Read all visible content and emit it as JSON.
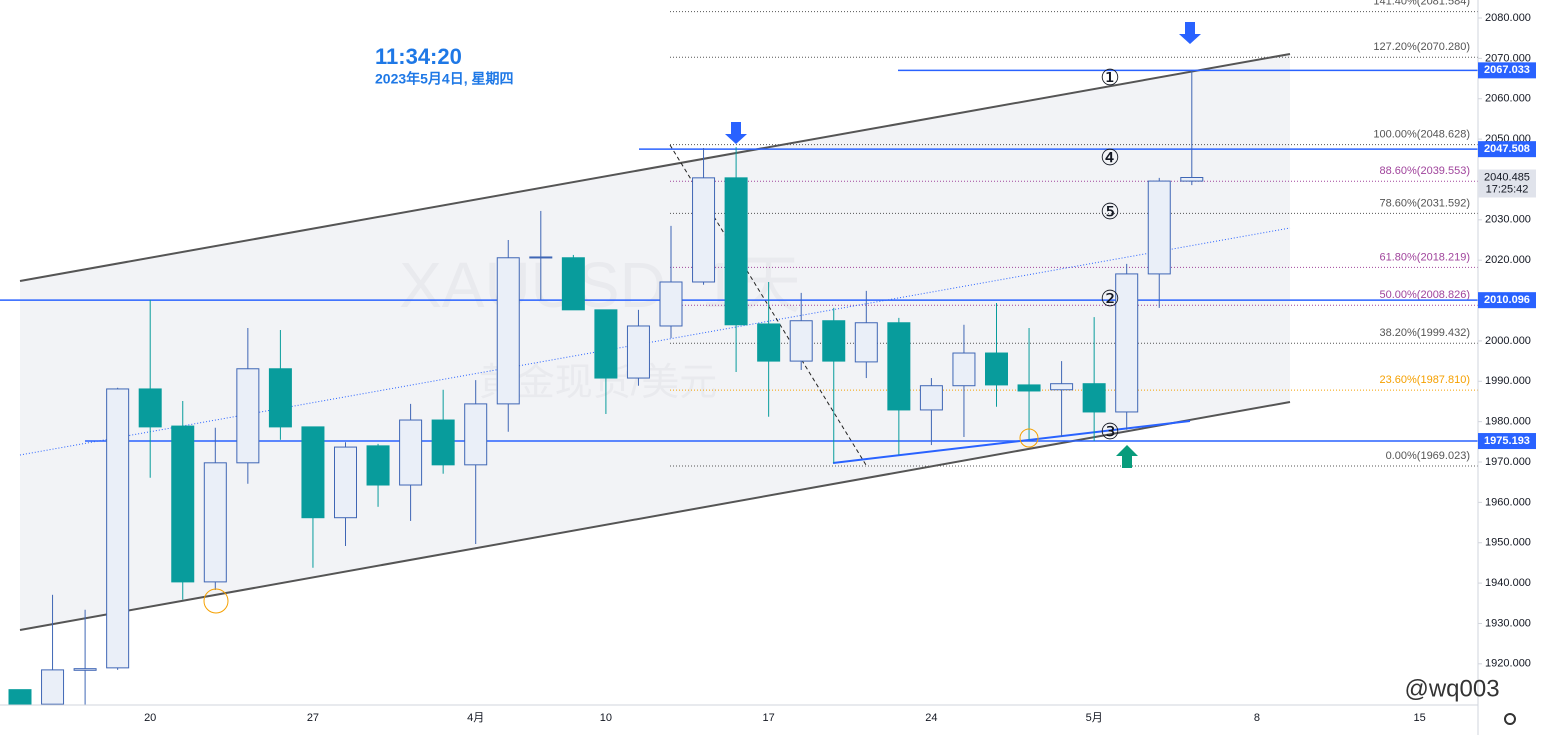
{
  "chart_data": {
    "type": "candlestick",
    "symbol_watermark": "XAUUSD, 1天",
    "name_watermark": "黄金现货/美元",
    "clock": "11:34:20",
    "date": "2023年5月4日, 星期四",
    "countdown": "17:25:42",
    "credit": "@wq003",
    "categories": [
      null,
      null,
      null,
      null,
      "20",
      null,
      null,
      null,
      null,
      "27",
      null,
      null,
      null,
      null,
      "4月",
      null,
      null,
      null,
      "10",
      null,
      null,
      null,
      null,
      "17",
      null,
      null,
      null,
      null,
      "24",
      null,
      null,
      null,
      null,
      "5月",
      null,
      null,
      null,
      null,
      "8",
      null,
      null,
      null,
      null,
      "15",
      null
    ],
    "open": [
      1913.6,
      1910,
      1918.4,
      1919.0,
      1988.1,
      1978.9,
      1940.3,
      1969.8,
      1993.1,
      1978.7,
      1956.2,
      1974.0,
      1964.3,
      1980.4,
      1969.3,
      1984.4,
      2020.6,
      2020.6,
      2007.7,
      1990.8,
      2003.7,
      2014.6,
      2040.4,
      2004.2,
      1995.0,
      2005.0,
      1994.8,
      2004.5,
      1982.9,
      1988.9,
      1997.0,
      1989.1,
      1987.9,
      1989.4,
      1982.4,
      2016.6,
      2039.6,
      null,
      null,
      null,
      null,
      null,
      null,
      null,
      null
    ],
    "high": [
      1913.6,
      1937.1,
      1933.4,
      1988.4,
      2010.2,
      1985.1,
      1978.5,
      2003.2,
      2002.7,
      1978.7,
      1974.9,
      1974.5,
      1984.4,
      1987.9,
      1990.3,
      2025.0,
      2032.2,
      2021.3,
      2007.7,
      2007.7,
      2028.5,
      2047.8,
      2048.0,
      2014.6,
      2011.9,
      2008.2,
      2012.4,
      2005.7,
      1990.8,
      2004.0,
      2009.4,
      2003.2,
      1995.0,
      2005.9,
      2019.1,
      2040.4,
      2067.033,
      null,
      null,
      null,
      null,
      null,
      null,
      null,
      null
    ],
    "low": [
      1909.8,
      1909.8,
      1909.8,
      1918.5,
      1966.1,
      1935.9,
      1938.3,
      1964.6,
      1975.5,
      1943.8,
      1949.2,
      1958.9,
      1955.4,
      1967.1,
      1949.7,
      1977.5,
      2010.2,
      2007.7,
      1981.9,
      1988.9,
      2000.7,
      2013.9,
      1992.3,
      1981.2,
      1992.8,
      1969.8,
      1990.8,
      1971.8,
      1974.2,
      1976.2,
      1983.7,
      1975.5,
      1976.2,
      1975.2,
      1978.0,
      2008.2,
      2038.6,
      null,
      null,
      null,
      null,
      null,
      null,
      null,
      null
    ],
    "close": [
      1910,
      1918.5,
      1918.8,
      1988.1,
      1978.7,
      1940.3,
      1969.8,
      1993.1,
      1978.7,
      1956.2,
      1973.7,
      1964.3,
      1980.4,
      1969.3,
      1984.4,
      2020.6,
      2020.8,
      2007.7,
      1990.8,
      2003.7,
      2014.6,
      2040.4,
      2004.0,
      1995.0,
      2005.0,
      1995.0,
      2004.5,
      1982.9,
      1988.9,
      1997.0,
      1989.1,
      1987.6,
      1989.4,
      1982.4,
      2016.6,
      2039.6,
      2040.485,
      null,
      null,
      null,
      null,
      null,
      null,
      null,
      null
    ],
    "up_color": "#3f66b5",
    "down_color": "#089c9c",
    "ylim": [
      1909.8,
      2084.46
    ],
    "yticks": [
      {
        "value": 1920,
        "label": "1920.000"
      },
      {
        "value": 1930,
        "label": "1930.000"
      },
      {
        "value": 1940,
        "label": "1940.000"
      },
      {
        "value": 1950,
        "label": "1950.000"
      },
      {
        "value": 1960,
        "label": "1960.000"
      },
      {
        "value": 1970,
        "label": "1970.000"
      },
      {
        "value": 1980,
        "label": "1980.000"
      },
      {
        "value": 1990,
        "label": "1990.000"
      },
      {
        "value": 2000,
        "label": "2000.000"
      },
      {
        "value": 2010,
        "label": "2010.000"
      },
      {
        "value": 2020,
        "label": "2020.000"
      },
      {
        "value": 2030,
        "label": "2030.000"
      },
      {
        "value": 2040,
        "label": "2040.000"
      },
      {
        "value": 2050,
        "label": "2050.000"
      },
      {
        "value": 2060,
        "label": "2060.000"
      },
      {
        "value": 2070,
        "label": "2070.000"
      },
      {
        "value": 2080,
        "label": "2080.000"
      }
    ],
    "price_lines": [
      2067.033,
      2047.508,
      2010.096,
      1975.193
    ],
    "price_line_color": "#2962ff",
    "fib_levels": [
      {
        "value": 2081.584,
        "label": "141.40%(2081.584)",
        "color": "#555555"
      },
      {
        "value": 2070.28,
        "label": "127.20%(2070.280)",
        "color": "#555555"
      },
      {
        "value": 2048.628,
        "label": "100.00%(2048.628)",
        "color": "#555555"
      },
      {
        "value": 2039.553,
        "label": "88.60%(2039.553)",
        "color": "#a0449c"
      },
      {
        "value": 2031.592,
        "label": "78.60%(2031.592)",
        "color": "#555555"
      },
      {
        "value": 2018.219,
        "label": "61.80%(2018.219)",
        "color": "#a0449c"
      },
      {
        "value": 2008.826,
        "label": "50.00%(2008.826)",
        "color": "#a0449c"
      },
      {
        "value": 1999.432,
        "label": "38.20%(1999.432)",
        "color": "#555555"
      },
      {
        "value": 1987.81,
        "label": "23.60%(1987.810)",
        "color": "#f5a000"
      },
      {
        "value": 1969.023,
        "label": "0.00%(1969.023)",
        "color": "#555555"
      }
    ],
    "wave_labels": [
      "①",
      "④",
      "⑤",
      "②",
      "③"
    ]
  }
}
